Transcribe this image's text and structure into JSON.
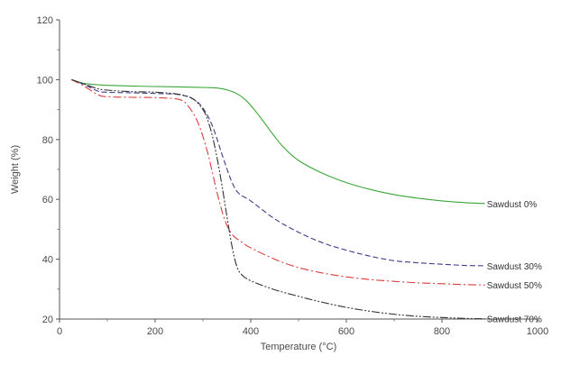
{
  "chart_data": {
    "type": "line",
    "xlabel": "Temperature (°C)",
    "ylabel": "Weight (%)",
    "xlim": [
      0,
      1000
    ],
    "ylim": [
      20,
      120
    ],
    "xticks": [
      0,
      200,
      400,
      600,
      800,
      1000
    ],
    "yticks": [
      20,
      40,
      60,
      80,
      100,
      120
    ],
    "grid": false,
    "legend": "inline labels at line ends",
    "series": [
      {
        "name": "Sawdust 0%",
        "color": "#3aa63a",
        "dash": "solid",
        "x": [
          25,
          50,
          80,
          100,
          150,
          200,
          250,
          300,
          330,
          350,
          370,
          390,
          410,
          430,
          450,
          470,
          500,
          550,
          600,
          650,
          700,
          750,
          800,
          850,
          890
        ],
        "y": [
          100,
          98.8,
          98.3,
          98.1,
          97.9,
          97.7,
          97.6,
          97.4,
          97.2,
          96.6,
          95.4,
          93.1,
          89.5,
          85.3,
          81.0,
          77.2,
          73.0,
          68.7,
          65.6,
          63.3,
          61.6,
          60.4,
          59.5,
          58.9,
          58.6
        ]
      },
      {
        "name": "Sawdust 30%",
        "color": "#3d3d8c",
        "dash": "dashed",
        "x": [
          25,
          50,
          80,
          100,
          150,
          200,
          250,
          280,
          300,
          320,
          340,
          360,
          375,
          400,
          450,
          500,
          550,
          600,
          650,
          700,
          750,
          800,
          850,
          890
        ],
        "y": [
          100,
          98.5,
          96.2,
          95.8,
          95.6,
          95.4,
          95.0,
          93.5,
          90.5,
          84.5,
          75.0,
          66.0,
          62.0,
          59.5,
          53.5,
          49.0,
          45.5,
          43.0,
          41.0,
          39.5,
          38.8,
          38.3,
          37.9,
          37.8
        ]
      },
      {
        "name": "Sawdust 50%",
        "color": "#dd3b3b",
        "dash": "dashdot",
        "x": [
          25,
          50,
          80,
          100,
          150,
          200,
          250,
          270,
          290,
          310,
          330,
          345,
          360,
          380,
          400,
          450,
          500,
          550,
          600,
          650,
          700,
          750,
          800,
          850,
          890
        ],
        "y": [
          100,
          98.0,
          95.0,
          94.3,
          94.1,
          94.0,
          93.4,
          91.0,
          85.5,
          75.5,
          62.0,
          53.5,
          48.5,
          45.8,
          43.8,
          40.0,
          37.2,
          35.4,
          34.1,
          33.2,
          32.6,
          32.1,
          31.8,
          31.5,
          31.4
        ]
      },
      {
        "name": "Sawdust 70%",
        "color": "#333333",
        "dash": "dashdotdot",
        "x": [
          25,
          50,
          80,
          100,
          150,
          200,
          250,
          280,
          300,
          310,
          320,
          330,
          340,
          350,
          360,
          370,
          380,
          400,
          450,
          500,
          550,
          600,
          650,
          700,
          750,
          800,
          850,
          890
        ],
        "y": [
          100,
          98.6,
          97.0,
          96.5,
          96.0,
          95.8,
          95.1,
          93.5,
          90.0,
          86.5,
          81.0,
          73.5,
          64.5,
          54.5,
          45.0,
          38.0,
          35.0,
          32.8,
          29.8,
          27.6,
          25.6,
          23.9,
          22.6,
          21.6,
          20.9,
          20.5,
          20.2,
          20.1
        ]
      }
    ]
  }
}
